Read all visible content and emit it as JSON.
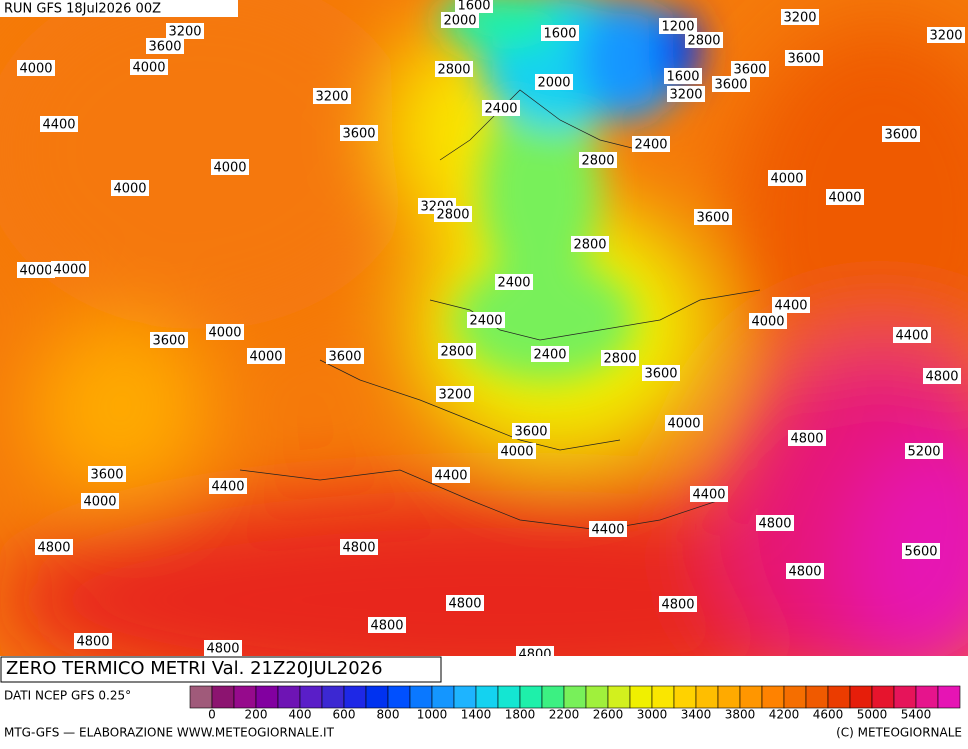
{
  "header": {
    "run": "RUN GFS 18Jul2026 00Z"
  },
  "title": "ZERO TERMICO METRI Val. 21Z20JUL2026",
  "source": "DATI NCEP GFS 0.25°",
  "credit_left": "MTG-GFS — ELABORAZIONE WWW.METEOGIORNALE.IT",
  "credit_right": "(C) METEOGIORNALE",
  "colorbar": {
    "colors": [
      "#a05a7a",
      "#8c1470",
      "#960a8c",
      "#8200a0",
      "#6e14b4",
      "#5a1ec8",
      "#3c28d2",
      "#1e28e6",
      "#0032f0",
      "#0050ff",
      "#0a78ff",
      "#1496ff",
      "#1eb4ff",
      "#14d2f0",
      "#14e6d2",
      "#1ef0aa",
      "#3cf082",
      "#78f05a",
      "#a0f03c",
      "#d2f01e",
      "#f0f000",
      "#fae600",
      "#ffd200",
      "#ffbe00",
      "#ffaa00",
      "#ff9600",
      "#ff8200",
      "#f56e00",
      "#f05a00",
      "#eb3c00",
      "#e61e0a",
      "#e6142d",
      "#e6145a",
      "#e6148c",
      "#e614b4"
    ],
    "ticks": [
      0,
      200,
      400,
      600,
      800,
      1000,
      1400,
      1800,
      2200,
      2600,
      3000,
      3400,
      3800,
      4200,
      4600,
      5000,
      5400
    ]
  },
  "contour_labels": [
    1600,
    2000,
    3200,
    3600,
    4000,
    4000,
    1600,
    1200,
    2800,
    3200,
    3200,
    2800,
    2000,
    1600,
    3200,
    3600,
    3600,
    3600,
    3200,
    4400,
    2400,
    3600,
    2400,
    3600,
    4000,
    2800,
    4000,
    4000,
    4000,
    3200,
    2800,
    3600,
    2800,
    4000,
    4000,
    2400,
    4400,
    2400,
    4000,
    4400,
    4000,
    3600,
    4000,
    3600,
    2800,
    2400,
    2800,
    3600,
    4800,
    3200,
    4000,
    3600,
    4000,
    4800,
    5200,
    3600,
    4400,
    4400,
    4000,
    4400,
    4400,
    4800,
    4800,
    4800,
    5600,
    4800,
    4800,
    4800,
    4800,
    4800,
    4800,
    4800
  ]
}
